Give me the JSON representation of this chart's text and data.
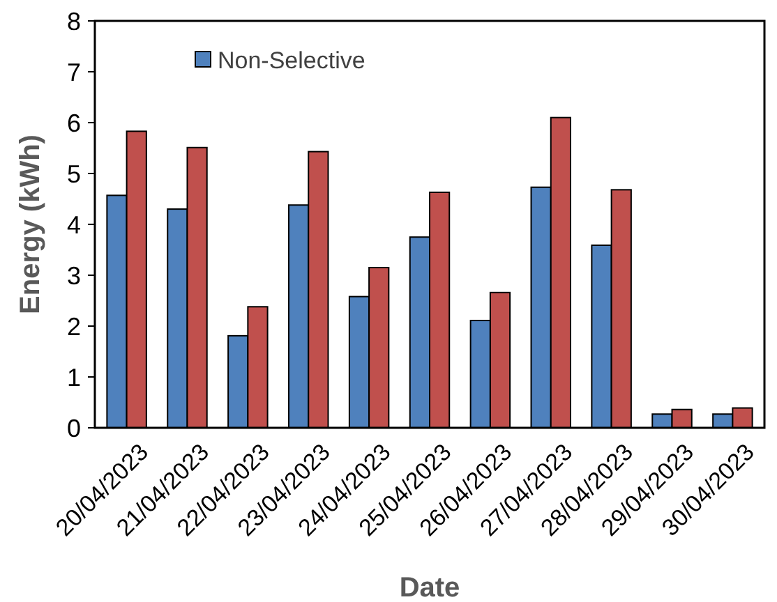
{
  "chart_data": {
    "type": "bar",
    "xlabel": "Date",
    "ylabel": "Energy (kWh)",
    "categories": [
      "20/04/2023",
      "21/04/2023",
      "22/04/2023",
      "23/04/2023",
      "24/04/2023",
      "25/04/2023",
      "26/04/2023",
      "27/04/2023",
      "28/04/2023",
      "29/04/2023",
      "30/04/2023"
    ],
    "series": [
      {
        "name": "Non-Selective",
        "color": "#4f81bd",
        "values": [
          4.57,
          4.3,
          1.81,
          4.38,
          2.58,
          3.75,
          2.11,
          4.73,
          3.59,
          0.27,
          0.27
        ]
      },
      {
        "color": "#c0504d",
        "values": [
          5.83,
          5.51,
          2.38,
          5.43,
          3.15,
          4.63,
          2.66,
          6.1,
          4.68,
          0.36,
          0.39
        ]
      }
    ],
    "ylim": [
      0,
      8
    ],
    "yticks": [
      0,
      1,
      2,
      3,
      4,
      5,
      6,
      7,
      8
    ],
    "grid": false,
    "legend": "top left"
  }
}
